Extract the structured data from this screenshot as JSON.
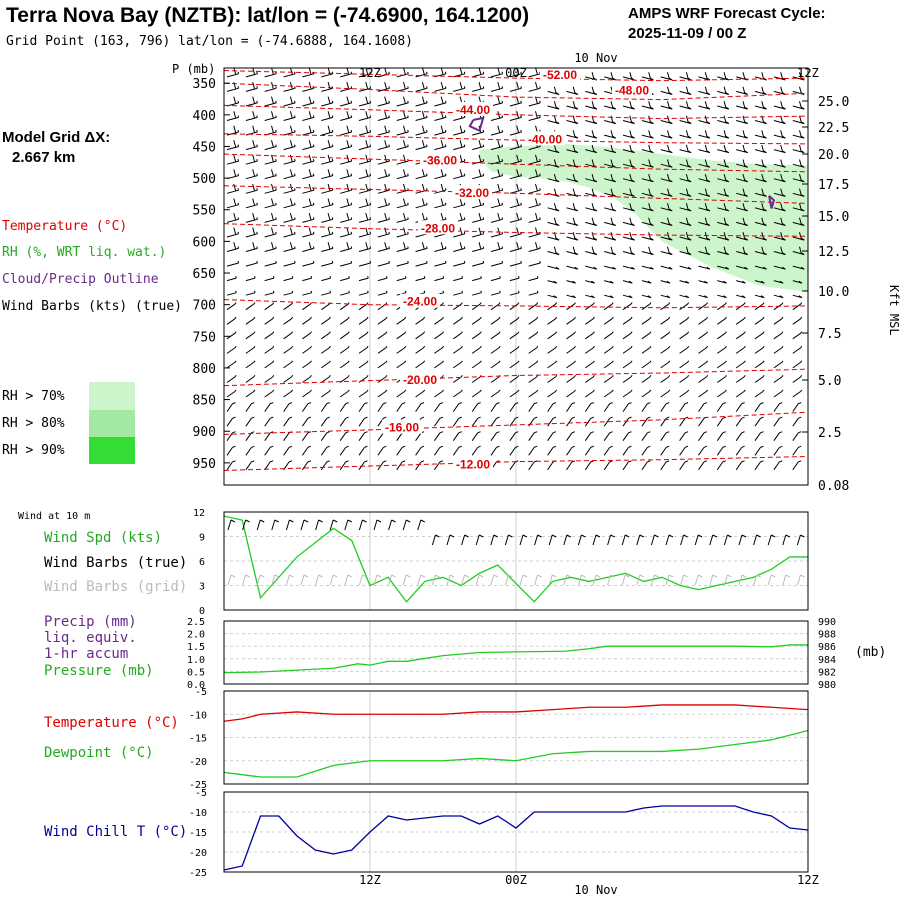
{
  "header": {
    "station": "Terra Nova Bay (NZTB):  lat/lon = (-74.6900, 164.1200)",
    "grid_point": "Grid Point (163, 796) lat/lon = (-74.6888, 164.1608)",
    "forecast_label": "AMPS WRF Forecast Cycle:",
    "forecast_cycle": "2025-11-09 / 00  Z"
  },
  "side_labels": {
    "model_grid": "Model Grid ΔX:",
    "grid_dx": "2.667 km",
    "temperature": "Temperature (°C)",
    "rh": "RH (%, WRT liq. wat.)",
    "cloud": "Cloud/Precip Outline",
    "wind_barbs": "Wind Barbs (kts) (true)",
    "rh_legend": [
      "RH > 70%",
      "RH > 80%",
      "RH > 90%"
    ],
    "wind_10m": "Wind at 10 m",
    "wind_spd": "Wind Spd (kts)",
    "barbs_true": "Wind Barbs (true)",
    "barbs_grid": "Wind Barbs (grid)",
    "precip": "Precip (mm)",
    "liq_equiv": "liq. equiv.",
    "accum": "1-hr accum",
    "pressure": "Pressure (mb)",
    "pressure_unit": "(mb)",
    "temperature2": "Temperature (°C)",
    "dewpoint": "Dewpoint (°C)",
    "windchill": "Wind Chill T (°C)"
  },
  "colors": {
    "temperature": "#dd0000",
    "rh_text": "#22aa22",
    "cloud": "#6a2a8a",
    "rh70": "#ccf5cc",
    "rh80": "#a3e8a3",
    "rh90": "#33dd33",
    "wind_line": "#22cc22",
    "grid_barb": "#bbbbbb",
    "precip_text": "#6a2a8a",
    "windchill": "#000099"
  },
  "chart_data": [
    {
      "type": "heatmap",
      "panel": "time-height cross section",
      "x_ticks": [
        "12Z",
        "00Z",
        "12Z"
      ],
      "x_date": "10 Nov",
      "y_axis_title": "P (mb)",
      "y_ticks": [
        350,
        400,
        450,
        500,
        550,
        600,
        650,
        700,
        750,
        800,
        850,
        900,
        950
      ],
      "y2_title": "Kft MSL",
      "y2_ticks": [
        "25.0",
        "22.5",
        "20.0",
        "17.5",
        "15.0",
        "12.5",
        "10.0",
        "7.5",
        "5.0",
        "2.5",
        "0.08"
      ],
      "temperature_contours": [
        {
          "label": "-52.00",
          "pressure": [
            330,
            336,
            342,
            346,
            342
          ],
          "t": [
            0,
            12,
            24,
            36,
            48
          ]
        },
        {
          "label": "-48.00",
          "pressure": [
            350,
            360,
            372,
            376,
            366
          ],
          "t": [
            0,
            12,
            24,
            36,
            48
          ]
        },
        {
          "label": "-44.00",
          "pressure": [
            385,
            392,
            400,
            406,
            402
          ],
          "t": [
            0,
            12,
            24,
            36,
            48
          ]
        },
        {
          "label": "-40.00",
          "pressure": [
            430,
            434,
            440,
            444,
            446
          ],
          "t": [
            0,
            12,
            24,
            36,
            48
          ]
        },
        {
          "label": "-36.00",
          "pressure": [
            462,
            470,
            478,
            486,
            490
          ],
          "t": [
            0,
            12,
            24,
            36,
            48
          ]
        },
        {
          "label": "-32.00",
          "pressure": [
            512,
            518,
            524,
            532,
            540
          ],
          "t": [
            0,
            12,
            24,
            36,
            48
          ]
        },
        {
          "label": "-28.00",
          "pressure": [
            572,
            580,
            586,
            590,
            592
          ],
          "t": [
            0,
            12,
            24,
            36,
            48
          ]
        },
        {
          "label": "-24.00",
          "pressure": [
            692,
            700,
            702,
            705,
            702
          ],
          "t": [
            0,
            12,
            24,
            36,
            48
          ]
        },
        {
          "label": "-20.00",
          "pressure": [
            828,
            820,
            812,
            808,
            802
          ],
          "t": [
            0,
            12,
            24,
            36,
            48
          ]
        },
        {
          "label": "-16.00",
          "pressure": [
            905,
            898,
            890,
            882,
            870
          ],
          "t": [
            0,
            12,
            24,
            36,
            48
          ]
        },
        {
          "label": "-12.00",
          "pressure": [
            962,
            955,
            948,
            945,
            940
          ],
          "t": [
            0,
            12,
            24,
            36,
            48
          ]
        }
      ],
      "rh70_region": {
        "t": [
          21,
          24,
          28,
          32,
          36,
          40,
          44,
          48,
          48,
          44,
          40,
          36,
          34,
          32,
          30,
          28,
          26,
          24,
          22,
          21
        ],
        "pressure": [
          455,
          450,
          446,
          452,
          462,
          472,
          478,
          480,
          680,
          670,
          640,
          600,
          560,
          530,
          515,
          505,
          500,
          498,
          490,
          470
        ]
      },
      "cloud_outlines": [
        {
          "t": [
            20.5,
            21.3,
            21.0,
            20.2,
            20.5
          ],
          "pressure": [
            408,
            405,
            425,
            418,
            408
          ]
        },
        {
          "t": [
            44.8,
            45.2,
            45.0,
            44.8
          ],
          "pressure": [
            528,
            535,
            548,
            528
          ]
        }
      ]
    },
    {
      "type": "line",
      "panel": "10 m wind",
      "y_ticks": [
        0,
        3,
        6,
        9,
        12
      ],
      "x": [
        0,
        1.5,
        3,
        6,
        9,
        10.5,
        12,
        13.5,
        15,
        16.5,
        18,
        19.5,
        21,
        22.5,
        25.5,
        27,
        28.5,
        30,
        31.5,
        33,
        34.5,
        36,
        37.5,
        39,
        40.5,
        42,
        43.5,
        45,
        46.5,
        48
      ],
      "series": [
        {
          "values": [
            11.5,
            11,
            1.5,
            6.5,
            10,
            8.5,
            3,
            4,
            1,
            3.5,
            4,
            3,
            4.5,
            5.5,
            1,
            3.5,
            4,
            3.5,
            4,
            4.5,
            3.5,
            4,
            3,
            2.5,
            3,
            3.5,
            4,
            5,
            6.5,
            6.5
          ]
        }
      ]
    },
    {
      "type": "line",
      "panel": "pressure and precip",
      "y_ticks": [
        "0.0",
        "0.5",
        "1.0",
        "1.5",
        "2.0",
        "2.5"
      ],
      "y2_ticks": [
        980,
        982,
        984,
        986,
        988,
        990
      ],
      "x": [
        0,
        3,
        6,
        9,
        11,
        12,
        13.5,
        15,
        18,
        21,
        24,
        28,
        30,
        31.5,
        33,
        36,
        39,
        42,
        45,
        46.5,
        48
      ],
      "series": [
        {
          "values": [
            981.8,
            981.9,
            982.2,
            982.5,
            983.2,
            983.0,
            983.6,
            983.6,
            984.5,
            985.0,
            985.1,
            985.2,
            985.6,
            986.0,
            986.0,
            986.0,
            986.0,
            986.0,
            985.9,
            986.2,
            986.2
          ]
        }
      ]
    },
    {
      "type": "line",
      "panel": "temperature and dewpoint",
      "y_ticks": [
        "-5",
        "-10",
        "-15",
        "-20",
        "-25"
      ],
      "x": [
        0,
        1.5,
        3,
        6,
        9,
        12,
        15,
        18,
        21,
        24,
        27,
        30,
        33,
        36,
        39,
        42,
        45,
        48
      ],
      "series": [
        {
          "values": [
            -11.5,
            -11,
            -10,
            -9.5,
            -10,
            -10,
            -10,
            -10,
            -9.5,
            -9.5,
            -9,
            -8.5,
            -8.5,
            -8,
            -8,
            -8,
            -8.5,
            -9
          ]
        },
        {
          "values": [
            -22.5,
            -23,
            -23.5,
            -23.5,
            -21,
            -20,
            -20,
            -20,
            -19.5,
            -20,
            -18.5,
            -18,
            -18,
            -18,
            -17.5,
            -16.5,
            -15.5,
            -13.5
          ]
        }
      ]
    },
    {
      "type": "line",
      "panel": "wind chill",
      "y_ticks": [
        "-5",
        "-10",
        "-15",
        "-20",
        "-25"
      ],
      "x": [
        0,
        1.5,
        3,
        4.5,
        6,
        7.5,
        9,
        10.5,
        12,
        13.5,
        15,
        18,
        19.5,
        21,
        22.5,
        24,
        25.5,
        27,
        28.5,
        30,
        31.5,
        33,
        34.5,
        36,
        37.5,
        39,
        40.5,
        42,
        43.5,
        45,
        46.5,
        48
      ],
      "series": [
        {
          "values": [
            -24.5,
            -23.5,
            -11,
            -11,
            -16,
            -19.5,
            -20.5,
            -19.5,
            -15,
            -11,
            -12,
            -11,
            -11,
            -13,
            -11,
            -14,
            -10,
            -10,
            -10,
            -10,
            -10,
            -10,
            -9,
            -8.5,
            -8.5,
            -8.5,
            -8.5,
            -8.5,
            -10,
            -11,
            -14,
            -14.5
          ]
        }
      ]
    }
  ]
}
